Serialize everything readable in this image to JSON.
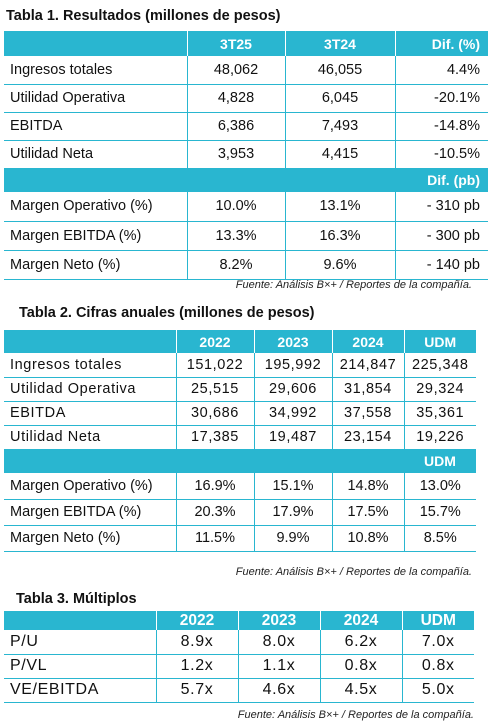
{
  "table1": {
    "title": "Tabla 1. Resultados (millones de pesos)",
    "headers": [
      "",
      "3T25",
      "3T24",
      "Dif. (%)"
    ],
    "rows": [
      [
        "Ingresos totales",
        "48,062",
        "46,055",
        "4.4%"
      ],
      [
        "Utilidad Operativa",
        "4,828",
        "6,045",
        "-20.1%"
      ],
      [
        "EBITDA",
        "6,386",
        "7,493",
        "-14.8%"
      ],
      [
        "Utilidad Neta",
        "3,953",
        "4,415",
        "-10.5%"
      ]
    ],
    "subheader": "Dif. (pb)",
    "margin_rows": [
      [
        "Margen Operativo (%)",
        "10.0%",
        "13.1%",
        "- 310 pb"
      ],
      [
        "Margen EBITDA (%)",
        "13.3%",
        "16.3%",
        "- 300 pb"
      ],
      [
        "Margen Neto (%)",
        "8.2%",
        "9.6%",
        "- 140 pb"
      ]
    ],
    "source": "Fuente: Análisis B×+ / Reportes de la compañía."
  },
  "table2": {
    "title": "Tabla 2. Cifras anuales (millones de pesos)",
    "headers": [
      "",
      "2022",
      "2023",
      "2024",
      "UDM"
    ],
    "rows": [
      [
        "Ingresos totales",
        "151,022",
        "195,992",
        "214,847",
        "225,348"
      ],
      [
        "Utilidad Operativa",
        "25,515",
        "29,606",
        "31,854",
        "29,324"
      ],
      [
        "EBITDA",
        "30,686",
        "34,992",
        "37,558",
        "35,361"
      ],
      [
        "Utilidad Neta",
        "17,385",
        "19,487",
        "23,154",
        "19,226"
      ]
    ],
    "subheader": "UDM",
    "margin_rows": [
      [
        "Margen Operativo (%)",
        "16.9%",
        "15.1%",
        "14.8%",
        "13.0%"
      ],
      [
        "Margen EBITDA (%)",
        "20.3%",
        "17.9%",
        "17.5%",
        "15.7%"
      ],
      [
        "Margen Neto (%)",
        "11.5%",
        "9.9%",
        "10.8%",
        "8.5%"
      ]
    ],
    "source": "Fuente: Análisis B×+ / Reportes de la compañía."
  },
  "table3": {
    "title": "Tabla 3. Múltiplos",
    "headers": [
      "",
      "2022",
      "2023",
      "2024",
      "UDM"
    ],
    "rows": [
      [
        "P/U",
        "8.9x",
        "8.0x",
        "6.2x",
        "7.0x"
      ],
      [
        "P/VL",
        "1.2x",
        "1.1x",
        "0.8x",
        "0.8x"
      ],
      [
        "VE/EBITDA",
        "5.7x",
        "4.6x",
        "4.5x",
        "5.0x"
      ]
    ],
    "source": "Fuente: Análisis B×+ / Reportes de la compañía."
  },
  "colors": {
    "accent": "#29b6d0",
    "header_text": "#ffffff"
  }
}
